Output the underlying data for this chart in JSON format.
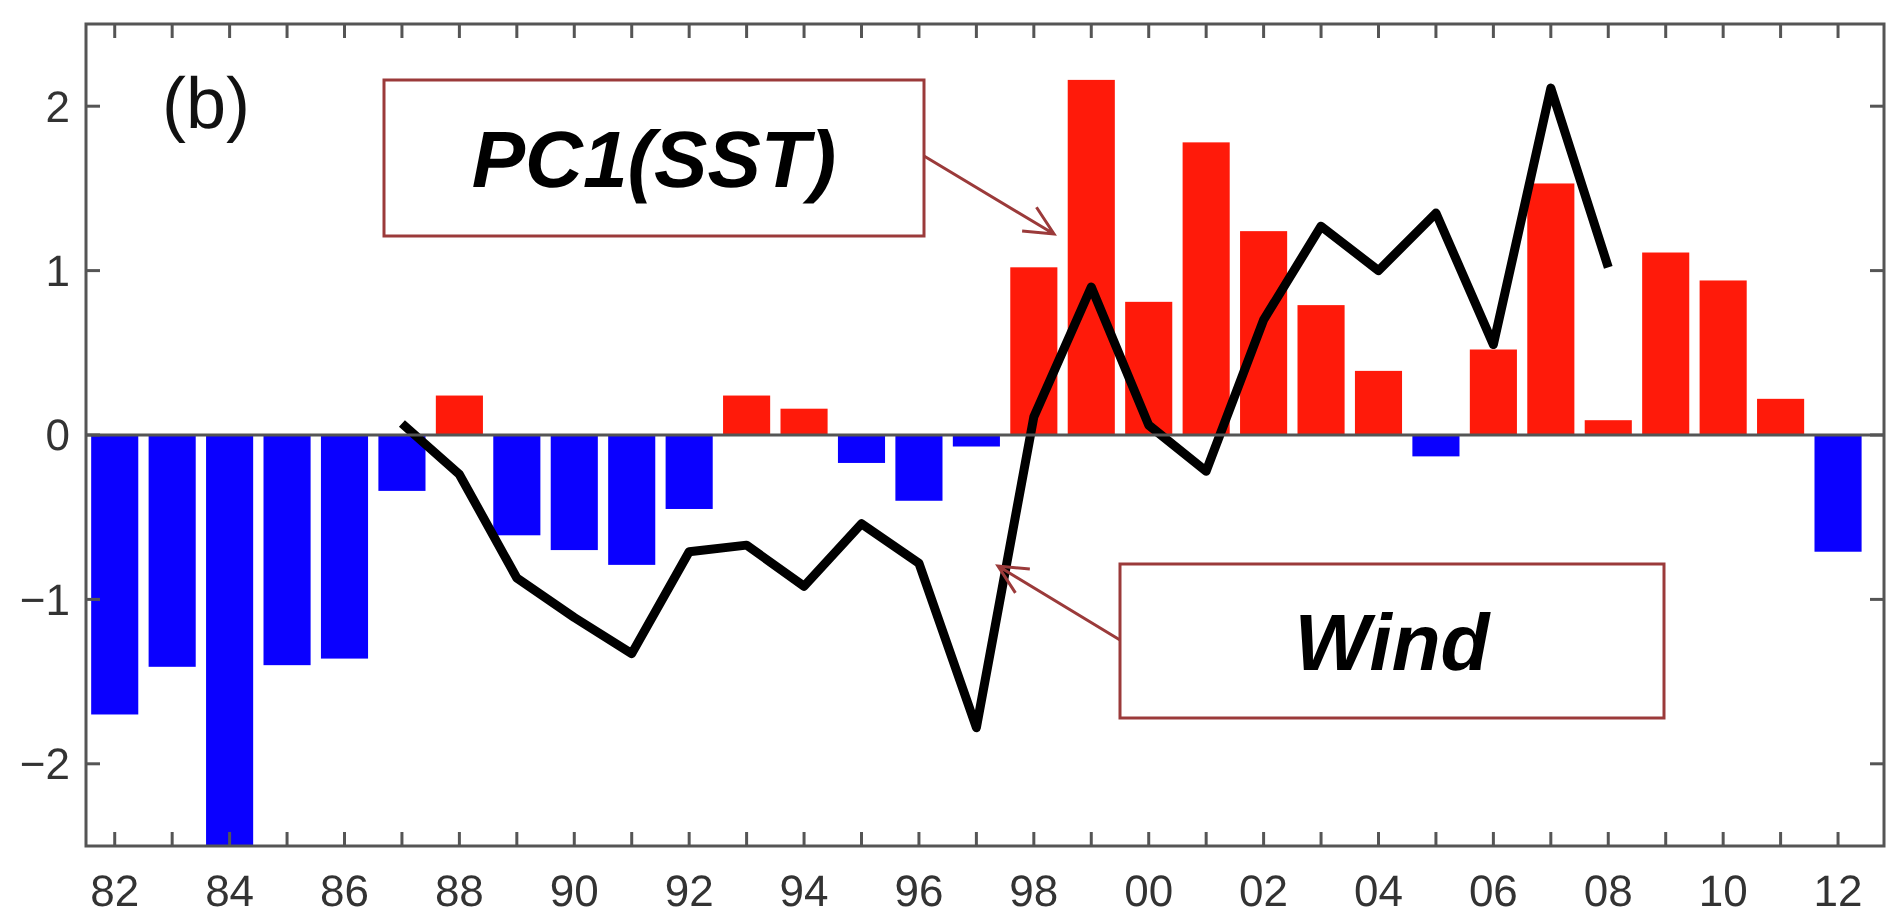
{
  "chart_data": {
    "type": "bar",
    "title": "(b)",
    "x": [
      1982,
      1983,
      1984,
      1985,
      1986,
      1987,
      1988,
      1989,
      1990,
      1991,
      1992,
      1993,
      1994,
      1995,
      1996,
      1997,
      1998,
      1999,
      2000,
      2001,
      2002,
      2003,
      2004,
      2005,
      2006,
      2007,
      2008,
      2009,
      2010,
      2011,
      2012
    ],
    "series": [
      {
        "name": "PC1(SST)",
        "values": [
          -1.7,
          -1.41,
          -2.5,
          -1.4,
          -1.36,
          -0.34,
          0.24,
          -0.61,
          -0.7,
          -0.79,
          -0.45,
          0.24,
          0.16,
          -0.17,
          -0.4,
          -0.07,
          1.02,
          2.16,
          0.81,
          1.78,
          1.24,
          0.79,
          0.39,
          -0.13,
          0.52,
          1.53,
          0.09,
          1.11,
          0.94,
          0.22,
          -0.71
        ],
        "colors": [
          "#0a00ff",
          "#0a00ff",
          "#0a00ff",
          "#0a00ff",
          "#0a00ff",
          "#0a00ff",
          "#ff1a0a",
          "#0a00ff",
          "#0a00ff",
          "#0a00ff",
          "#0a00ff",
          "#ff1a0a",
          "#ff1a0a",
          "#0a00ff",
          "#0a00ff",
          "#0a00ff",
          "#ff1a0a",
          "#ff1a0a",
          "#ff1a0a",
          "#ff1a0a",
          "#ff1a0a",
          "#ff1a0a",
          "#ff1a0a",
          "#0a00ff",
          "#ff1a0a",
          "#ff1a0a",
          "#ff1a0a",
          "#ff1a0a",
          "#ff1a0a",
          "#ff1a0a",
          "#0a00ff"
        ]
      },
      {
        "name": "Wind",
        "type": "line",
        "color": "#000000",
        "x": [
          1987,
          1988,
          1989,
          1990,
          1991,
          1992,
          1993,
          1994,
          1995,
          1996,
          1997,
          1998,
          1999,
          2000,
          2001,
          2002,
          2003,
          2004,
          2005,
          2006,
          2007,
          2008
        ],
        "values": [
          0.07,
          -0.24,
          -0.87,
          -1.11,
          -1.33,
          -0.71,
          -0.67,
          -0.92,
          -0.54,
          -0.78,
          -1.78,
          0.11,
          0.9,
          0.06,
          -0.22,
          0.7,
          1.27,
          1.0,
          1.35,
          0.55,
          2.11,
          1.02
        ]
      }
    ],
    "xlim": [
      1981.5,
      2012.8
    ],
    "xticks": [
      {
        "value": 1982,
        "label": "82"
      },
      {
        "value": 1983,
        "label": null
      },
      {
        "value": 1984,
        "label": "84"
      },
      {
        "value": 1985,
        "label": null
      },
      {
        "value": 1986,
        "label": "86"
      },
      {
        "value": 1987,
        "label": null
      },
      {
        "value": 1988,
        "label": "88"
      },
      {
        "value": 1989,
        "label": null
      },
      {
        "value": 1990,
        "label": "90"
      },
      {
        "value": 1991,
        "label": null
      },
      {
        "value": 1992,
        "label": "92"
      },
      {
        "value": 1993,
        "label": null
      },
      {
        "value": 1994,
        "label": "94"
      },
      {
        "value": 1995,
        "label": null
      },
      {
        "value": 1996,
        "label": "96"
      },
      {
        "value": 1997,
        "label": null
      },
      {
        "value": 1998,
        "label": "98"
      },
      {
        "value": 1999,
        "label": null
      },
      {
        "value": 2000,
        "label": "00"
      },
      {
        "value": 2001,
        "label": null
      },
      {
        "value": 2002,
        "label": "02"
      },
      {
        "value": 2003,
        "label": null
      },
      {
        "value": 2004,
        "label": "04"
      },
      {
        "value": 2005,
        "label": null
      },
      {
        "value": 2006,
        "label": "06"
      },
      {
        "value": 2007,
        "label": null
      },
      {
        "value": 2008,
        "label": "08"
      },
      {
        "value": 2009,
        "label": null
      },
      {
        "value": 2010,
        "label": "10"
      },
      {
        "value": 2011,
        "label": null
      },
      {
        "value": 2012,
        "label": "12"
      }
    ],
    "ylim": [
      -2.5,
      2.5
    ],
    "yticks": [
      {
        "value": -2,
        "label": "−2"
      },
      {
        "value": -1,
        "label": "−1"
      },
      0,
      1,
      2
    ],
    "ref_lines": [
      {
        "axis": "y",
        "value": 0,
        "color": "#555555"
      }
    ],
    "grid": false
  }
}
